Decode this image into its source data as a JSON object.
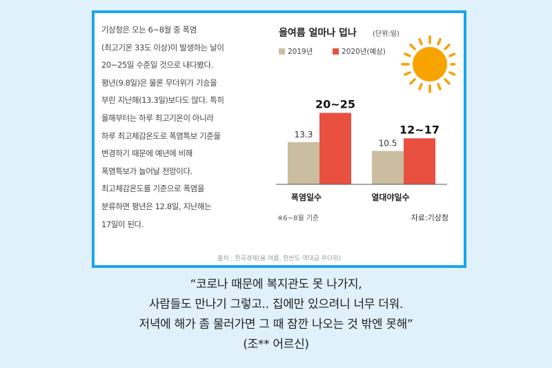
{
  "article": {
    "lines": [
      "기상청은 오는 6~8월 중 폭염",
      "(최고기온 33도 이상)이 발생하는 날이",
      "20~25일 수준일 것으로 내다봤다.",
      "평년(9.8일)은 물론 무더위가 기승을",
      "부린 지난해(13.3일)보다도 많다. 특히",
      "올해부터는 하루 최고기온이 아니라",
      "하루 최고체감온도로 폭염특보 기준을",
      "변경하기 때문에 예년에 비해",
      "폭염특보가 늘어날 전망이다.",
      "최고체감온도를 기준으로 폭염을",
      "분류하면 평년은 12.8일, 지난해는",
      "17일이 된다."
    ]
  },
  "source": "출처 : 한국경제(올 여름, 한반도 역대급 무더위)",
  "chart_data": {
    "type": "bar",
    "title": "올여름 얼마나 덥나",
    "unit": "(단위:일)",
    "categories": [
      "폭염일수",
      "열대야일수"
    ],
    "series": [
      {
        "name": "2019년",
        "color": "#cbbda0",
        "values": [
          13.3,
          10.5
        ],
        "labels": [
          "13.3",
          "10.5"
        ]
      },
      {
        "name": "2020년(예상)",
        "color": "#e9503f",
        "values": [
          22.5,
          14.5
        ],
        "labels": [
          "20~25",
          "12~17"
        ]
      }
    ],
    "ylim": [
      0,
      25
    ],
    "footnote": "※6~8월 기준",
    "credit": "자료:기상청",
    "icon": "sun-icon"
  },
  "quote": {
    "lines": [
      "“코로나 때문에 복지관도 못 나가지,",
      "사람들도 만나기 그렇고.. 집에만 있으려니 너무 더워.",
      "저녁에 해가 좀 물러가면 그 때 잠깐 나오는 것 밖엔 못해”",
      "(조** 어르신)"
    ]
  }
}
